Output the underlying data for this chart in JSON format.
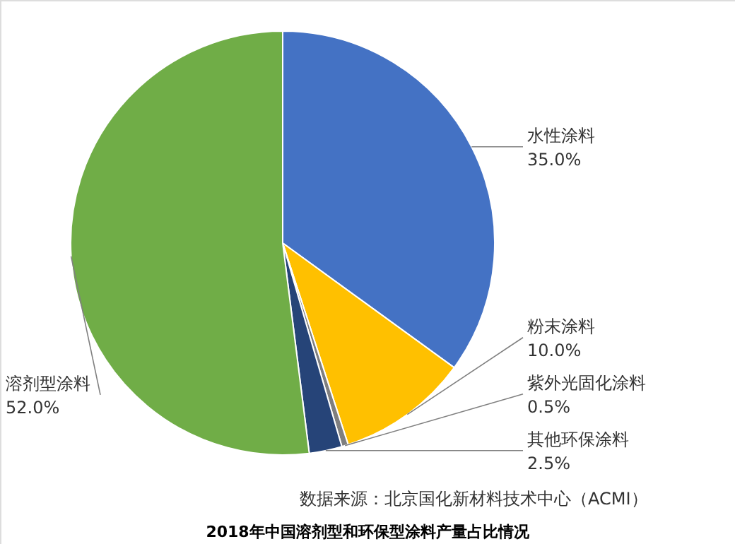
{
  "chart_data": {
    "type": "pie",
    "title": "2018年中国溶剂型和环保型涂料产量占比情况",
    "categories": [
      "水性涂料",
      "粉末涂料",
      "紫外光固化涂料",
      "其他环保涂料",
      "溶剂型涂料"
    ],
    "values": [
      35.0,
      10.0,
      0.5,
      2.5,
      52.0
    ],
    "value_labels": [
      "35.0%",
      "10.0%",
      "0.5%",
      "2.5%",
      "52.0%"
    ],
    "colors": [
      "#4472c4",
      "#ffc000",
      "#7f7f7f",
      "#264478",
      "#70ad47"
    ],
    "annotations": [
      "数据来源：北京国化新材料技术中心（ACMI）"
    ]
  }
}
